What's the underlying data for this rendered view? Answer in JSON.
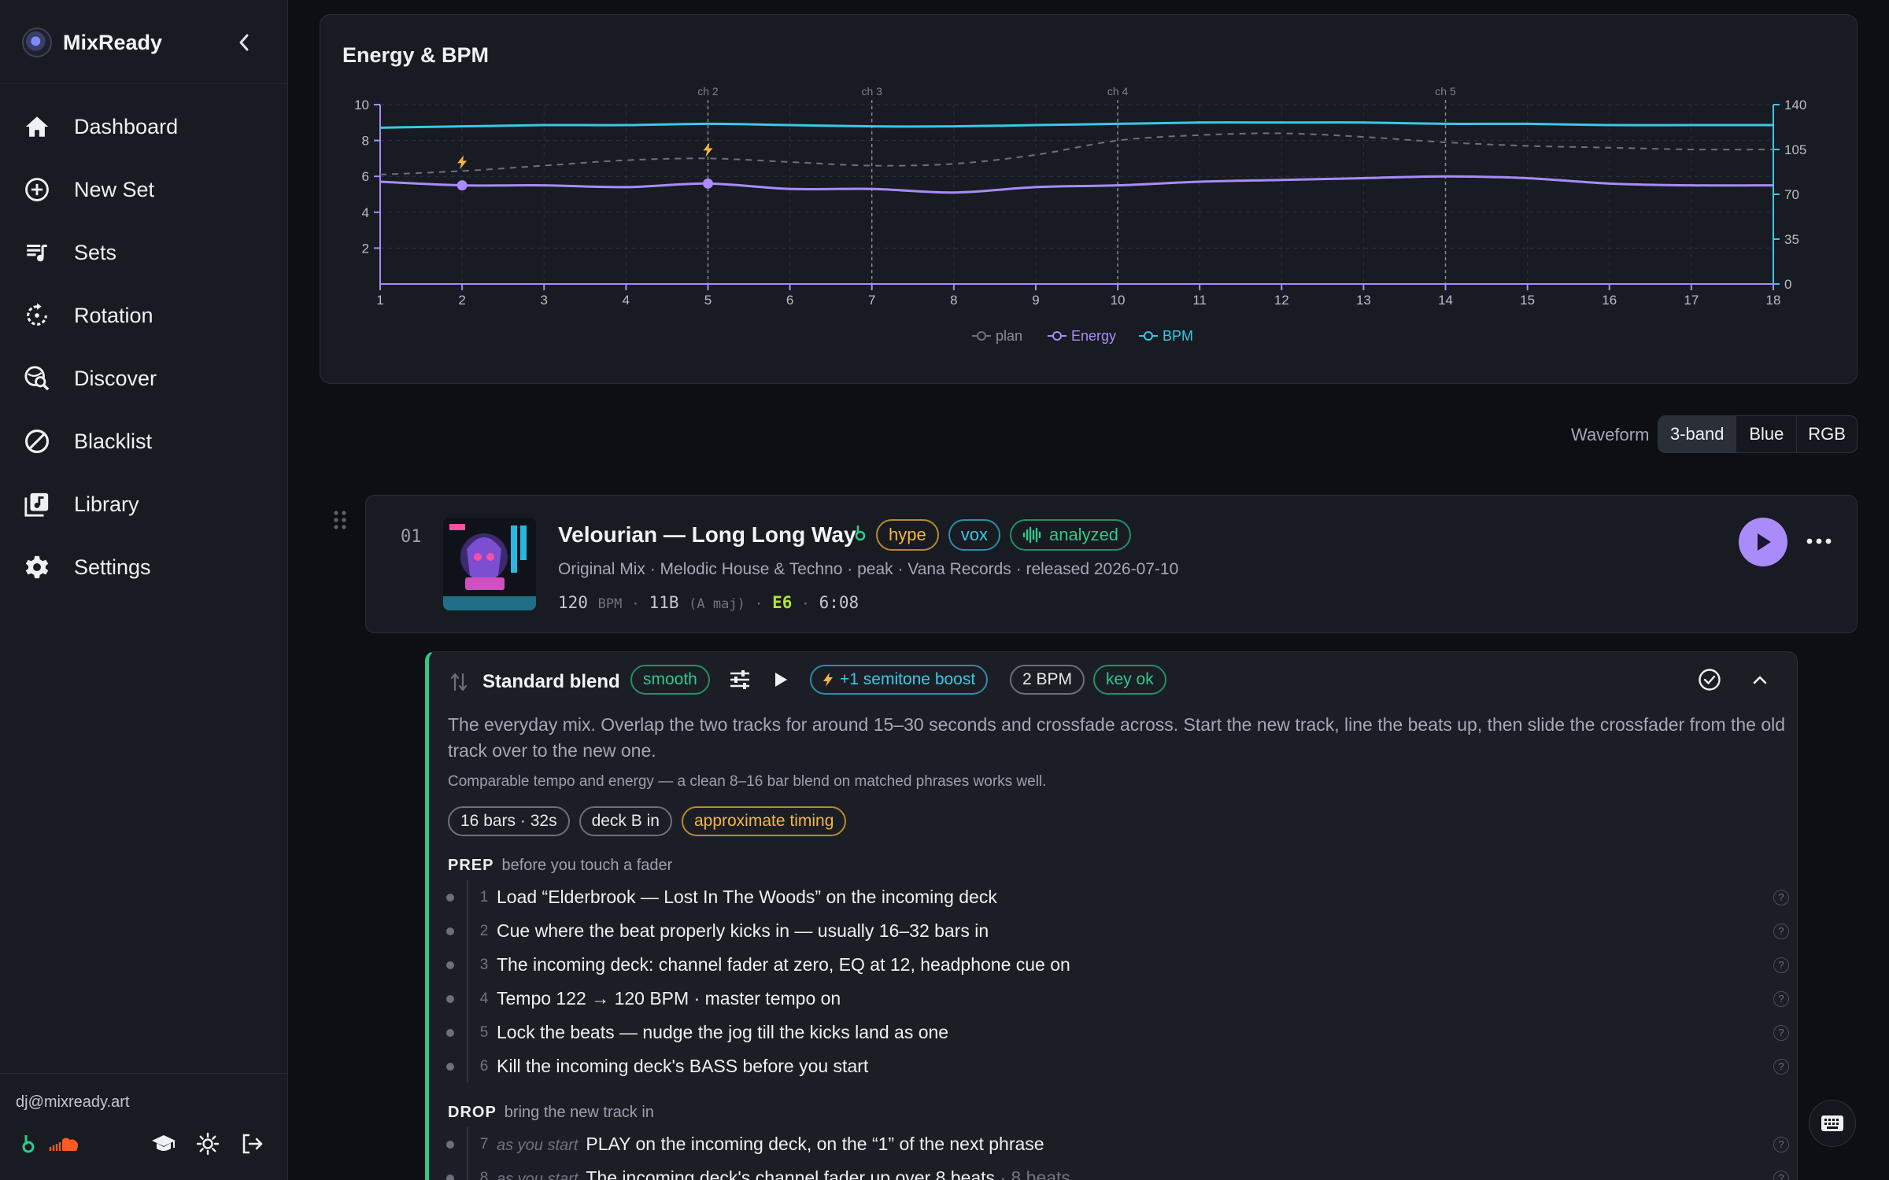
{
  "app": {
    "name": "MixReady"
  },
  "sidebar": {
    "items": [
      {
        "label": "Dashboard",
        "icon": "home-icon"
      },
      {
        "label": "New Set",
        "icon": "plus-circle-icon"
      },
      {
        "label": "Sets",
        "icon": "playlist-icon"
      },
      {
        "label": "Rotation",
        "icon": "rotation-icon"
      },
      {
        "label": "Discover",
        "icon": "discover-icon"
      },
      {
        "label": "Blacklist",
        "icon": "ban-icon"
      },
      {
        "label": "Library",
        "icon": "library-icon"
      },
      {
        "label": "Settings",
        "icon": "gear-icon"
      }
    ],
    "user_email": "dj@mixready.art"
  },
  "chart": {
    "title": "Energy & BPM",
    "legend": [
      {
        "name": "plan",
        "color": "#6b707c"
      },
      {
        "name": "Energy",
        "color": "#a98bfa"
      },
      {
        "name": "BPM",
        "color": "#38c9e8"
      }
    ]
  },
  "chart_data": {
    "type": "line",
    "title": "Energy & BPM",
    "x": [
      1,
      2,
      3,
      4,
      5,
      6,
      7,
      8,
      9,
      10,
      11,
      12,
      13,
      14,
      15,
      16,
      17,
      18
    ],
    "xlim": [
      1,
      18
    ],
    "y_left_ticks": [
      2,
      4,
      6,
      8,
      10
    ],
    "y_left_lim": [
      0,
      10
    ],
    "y_right_ticks": [
      0,
      35,
      70,
      105,
      140
    ],
    "y_right_lim": [
      0,
      140
    ],
    "chapters": [
      {
        "label": "ch 2",
        "x": 5
      },
      {
        "label": "ch 3",
        "x": 7
      },
      {
        "label": "ch 4",
        "x": 10
      },
      {
        "label": "ch 5",
        "x": 14
      }
    ],
    "series": [
      {
        "name": "plan",
        "axis": "left",
        "style": "dashed",
        "values": [
          6.1,
          6.3,
          6.6,
          6.9,
          7.0,
          6.8,
          6.6,
          6.7,
          7.2,
          8.0,
          8.3,
          8.4,
          8.2,
          7.9,
          7.7,
          7.6,
          7.5,
          7.5
        ]
      },
      {
        "name": "Energy",
        "axis": "left",
        "values": [
          5.7,
          5.5,
          5.5,
          5.4,
          5.6,
          5.3,
          5.3,
          5.1,
          5.4,
          5.5,
          5.7,
          5.8,
          5.9,
          6.0,
          5.9,
          5.6,
          5.5,
          5.5
        ]
      },
      {
        "name": "BPM",
        "axis": "right",
        "values": [
          122,
          123,
          124,
          124,
          125,
          124,
          123,
          123,
          124,
          125,
          126,
          126,
          126,
          125,
          125,
          124,
          124,
          124
        ]
      }
    ],
    "markers": [
      2,
      5
    ],
    "legend_position": "bottom-center"
  },
  "waveform": {
    "label": "Waveform",
    "options": [
      "3-band",
      "Blue",
      "RGB"
    ],
    "selected": "3-band"
  },
  "track": {
    "number": "01",
    "title": "Velourian — Long Long Way",
    "tags": [
      "hype",
      "vox",
      "analyzed"
    ],
    "meta": "Original Mix · Melodic House & Techno · peak · Vana Records · released 2026-07-10",
    "bpm": "120",
    "bpm_unit": "BPM",
    "key": "11B",
    "key_name": "(A maj)",
    "camelot": "E6",
    "duration": "6:08",
    "sep": "·"
  },
  "transition": {
    "name": "Standard blend",
    "style_tag": "smooth",
    "boost_label": "+1 semitone boost",
    "bpm_diff": "2 BPM",
    "key_status": "key ok",
    "description": "The everyday mix. Overlap the two tracks for around 15–30 seconds and crossfade across. Start the new track, line the beats up, then slide the crossfader from the old track over to the new one.",
    "note": "Comparable tempo and energy — a clean 8–16 bar blend on matched phrases works well.",
    "chips": [
      "16 bars · 32s",
      "deck B in",
      "approximate timing"
    ],
    "prep": {
      "title": "PREP",
      "subtitle": "before you touch a fader",
      "steps": [
        {
          "n": "1",
          "text": "Load “Elderbrook — Lost In The Woods” on the incoming deck"
        },
        {
          "n": "2",
          "text": "Cue where the beat properly kicks in — usually 16–32 bars in"
        },
        {
          "n": "3",
          "text": "The incoming deck: channel fader at zero, EQ at 12, headphone cue on"
        },
        {
          "n": "4",
          "text": "Tempo 122 → 120 BPM · master tempo on"
        },
        {
          "n": "5",
          "text": "Lock the beats — nudge the jog till the kicks land as one"
        },
        {
          "n": "6",
          "text": "Kill the incoming deck's BASS before you start"
        }
      ]
    },
    "drop": {
      "title": "DROP",
      "subtitle": "bring the new track in",
      "steps": [
        {
          "n": "7",
          "when": "as you start",
          "text": "PLAY on the incoming deck, on the “1” of the next phrase",
          "extra": ""
        },
        {
          "n": "8",
          "when": "as you start",
          "text": "The incoming deck's channel fader up over 8 beats",
          "extra": "· 8 beats"
        }
      ]
    }
  }
}
